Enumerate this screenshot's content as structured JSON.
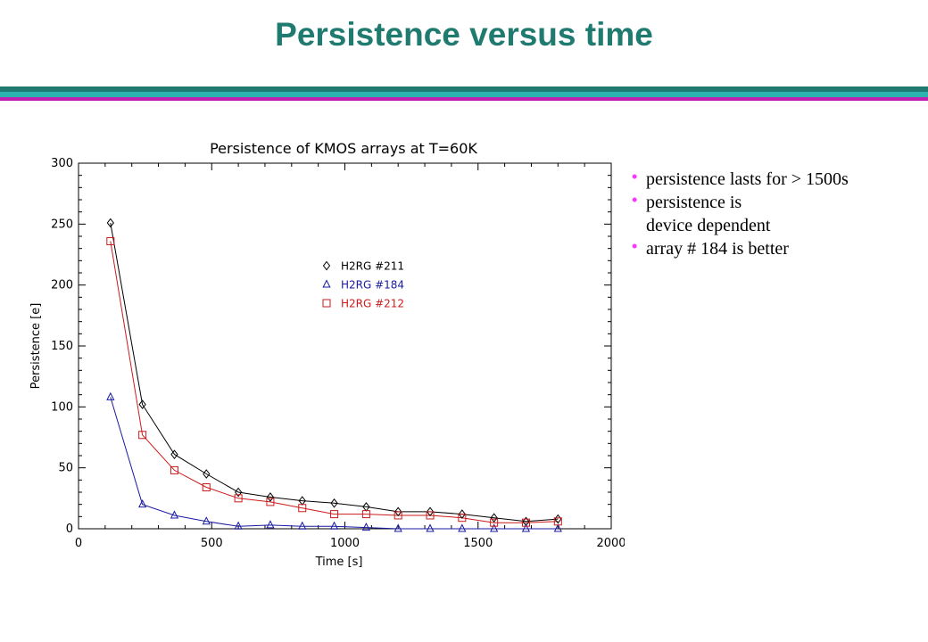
{
  "slide": {
    "title": "Persistence versus time",
    "rule_colors": [
      "#1f7a70",
      "#2bb5b0",
      "#c020b0"
    ]
  },
  "bullets": {
    "dot_glyph": "•",
    "dot_color": "#ff33ff",
    "items": [
      {
        "lines": [
          "persistence  lasts for > 1500s"
        ]
      },
      {
        "lines": [
          "persistence is",
          "device dependent"
        ]
      },
      {
        "lines": [
          "array # 184 is better"
        ]
      }
    ]
  },
  "chart_data": {
    "type": "line",
    "title": "Persistence of KMOS arrays at T=60K",
    "xlabel": "Time [s]",
    "ylabel": "Persistence [e]",
    "xlim": [
      0,
      2000
    ],
    "ylim": [
      0,
      300
    ],
    "xticks": [
      0,
      500,
      1000,
      1500,
      2000
    ],
    "yticks": [
      0,
      50,
      100,
      150,
      200,
      250,
      300
    ],
    "grid": false,
    "legend": "upper-middle",
    "x": [
      120,
      240,
      360,
      480,
      600,
      720,
      840,
      960,
      1080,
      1200,
      1320,
      1440,
      1560,
      1680,
      1800
    ],
    "series": [
      {
        "name": "H2RG #211",
        "marker": "diamond",
        "color": "#000000",
        "values": [
          251,
          102,
          61,
          45,
          30,
          26,
          23,
          21,
          18,
          14,
          14,
          12,
          9,
          6,
          8
        ]
      },
      {
        "name": "H2RG #184",
        "marker": "triangle",
        "color": "#1a1aa0",
        "values": [
          108,
          20,
          11,
          6,
          2,
          3,
          2,
          2,
          1,
          0,
          0,
          0,
          0,
          0,
          0
        ]
      },
      {
        "name": "H2RG #212",
        "marker": "square",
        "color": "#cc1a1a",
        "values": [
          236,
          77,
          48,
          34,
          25,
          22,
          17,
          12,
          12,
          11,
          11,
          9,
          5,
          5,
          6
        ]
      }
    ]
  }
}
